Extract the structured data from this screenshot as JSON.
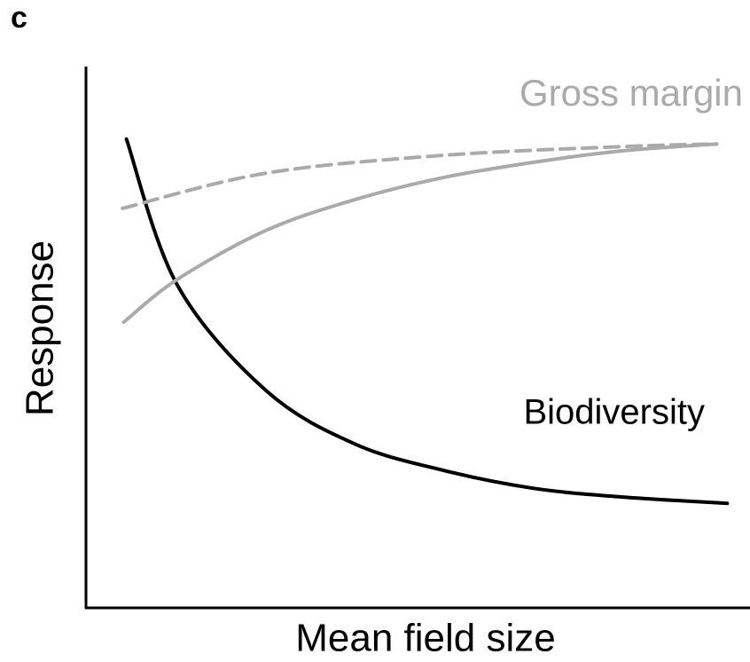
{
  "chart_data": {
    "type": "line",
    "panel_label": "c",
    "xlabel": "Mean field size",
    "ylabel": "Response",
    "xlim": [
      0,
      100
    ],
    "ylim": [
      0,
      100
    ],
    "annotations": [
      "Gross margin",
      "Biodiversity"
    ],
    "series": [
      {
        "name": "Biodiversity",
        "color": "#000000",
        "dashed": false,
        "x": [
          6.1,
          13.7,
          27.1,
          40.5,
          53.9,
          67.4,
          80.7,
          96.7
        ],
        "values": [
          86.6,
          59.8,
          40.2,
          30.3,
          25.4,
          22.1,
          20.5,
          19.3
        ]
      },
      {
        "name": "Gross margin",
        "color": "#aaaaaa",
        "dashed": false,
        "x": [
          5.7,
          13.8,
          27.1,
          40.5,
          53.9,
          67.4,
          80.7,
          95.1
        ],
        "values": [
          52.8,
          60.7,
          69.7,
          75.4,
          79.5,
          82.3,
          84.4,
          85.7
        ]
      },
      {
        "color": "#aaaaaa",
        "dashed": true,
        "x": [
          5.5,
          27.1,
          53.9,
          80.7,
          95.1
        ],
        "values": [
          73.8,
          80.3,
          83.6,
          85.2,
          85.7
        ]
      }
    ]
  }
}
